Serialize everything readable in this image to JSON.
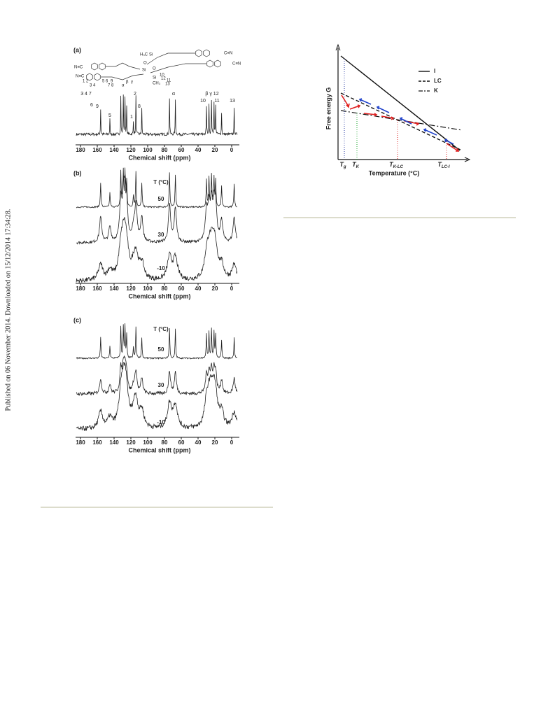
{
  "side_note": "Published on 06 November 2014. Downloaded on 15/12/2014 17:34:28.",
  "figure_left": {
    "panel_a": {
      "label": "(a)",
      "structure_labels": [
        "N≡C",
        "N≡C",
        "H₃C",
        "Si",
        "O",
        "Si",
        "O",
        "Si",
        "CH₃",
        "C≡N",
        "C≡N",
        "1 2",
        "3 4",
        "5 6",
        "7 8",
        "9",
        "α",
        "β",
        "γ",
        "12",
        "13",
        "11",
        "10"
      ],
      "peak_labels": [
        "9",
        "5",
        "3 4 7",
        "6",
        "2",
        "1",
        "8",
        "α",
        "10",
        "β γ 12",
        "11",
        "13"
      ],
      "x_ticks": [
        "180",
        "160",
        "140",
        "120",
        "100",
        "80",
        "60",
        "40",
        "20",
        "0"
      ],
      "x_axis_title": "Chemical shift (ppm)"
    },
    "panel_b": {
      "label": "(b)",
      "temperature_title": "T (°C)",
      "temperatures": [
        "50",
        "30",
        "-10"
      ],
      "x_ticks": [
        "180",
        "160",
        "140",
        "120",
        "100",
        "80",
        "60",
        "40",
        "20",
        "0"
      ],
      "x_axis_title": "Chemical shift (ppm)"
    },
    "panel_c": {
      "label": "(c)",
      "temperature_title": "T (°C)",
      "temperatures": [
        "50",
        "30",
        "-10"
      ],
      "x_ticks": [
        "180",
        "160",
        "140",
        "120",
        "100",
        "80",
        "60",
        "40",
        "20",
        "0"
      ],
      "x_axis_title": "Chemical shift (ppm)"
    }
  },
  "figure_right": {
    "y_axis_title": "Free energy G",
    "legend": [
      "I",
      "LC",
      "K"
    ],
    "x_labels": [
      {
        "main": "T",
        "sub": "g"
      },
      {
        "main": "T",
        "sub": "K"
      },
      {
        "main": "T",
        "sub": "K-LC"
      },
      {
        "main": "T",
        "sub": "LC-I"
      }
    ],
    "x_axis_title": "Temperature (°C)"
  }
}
